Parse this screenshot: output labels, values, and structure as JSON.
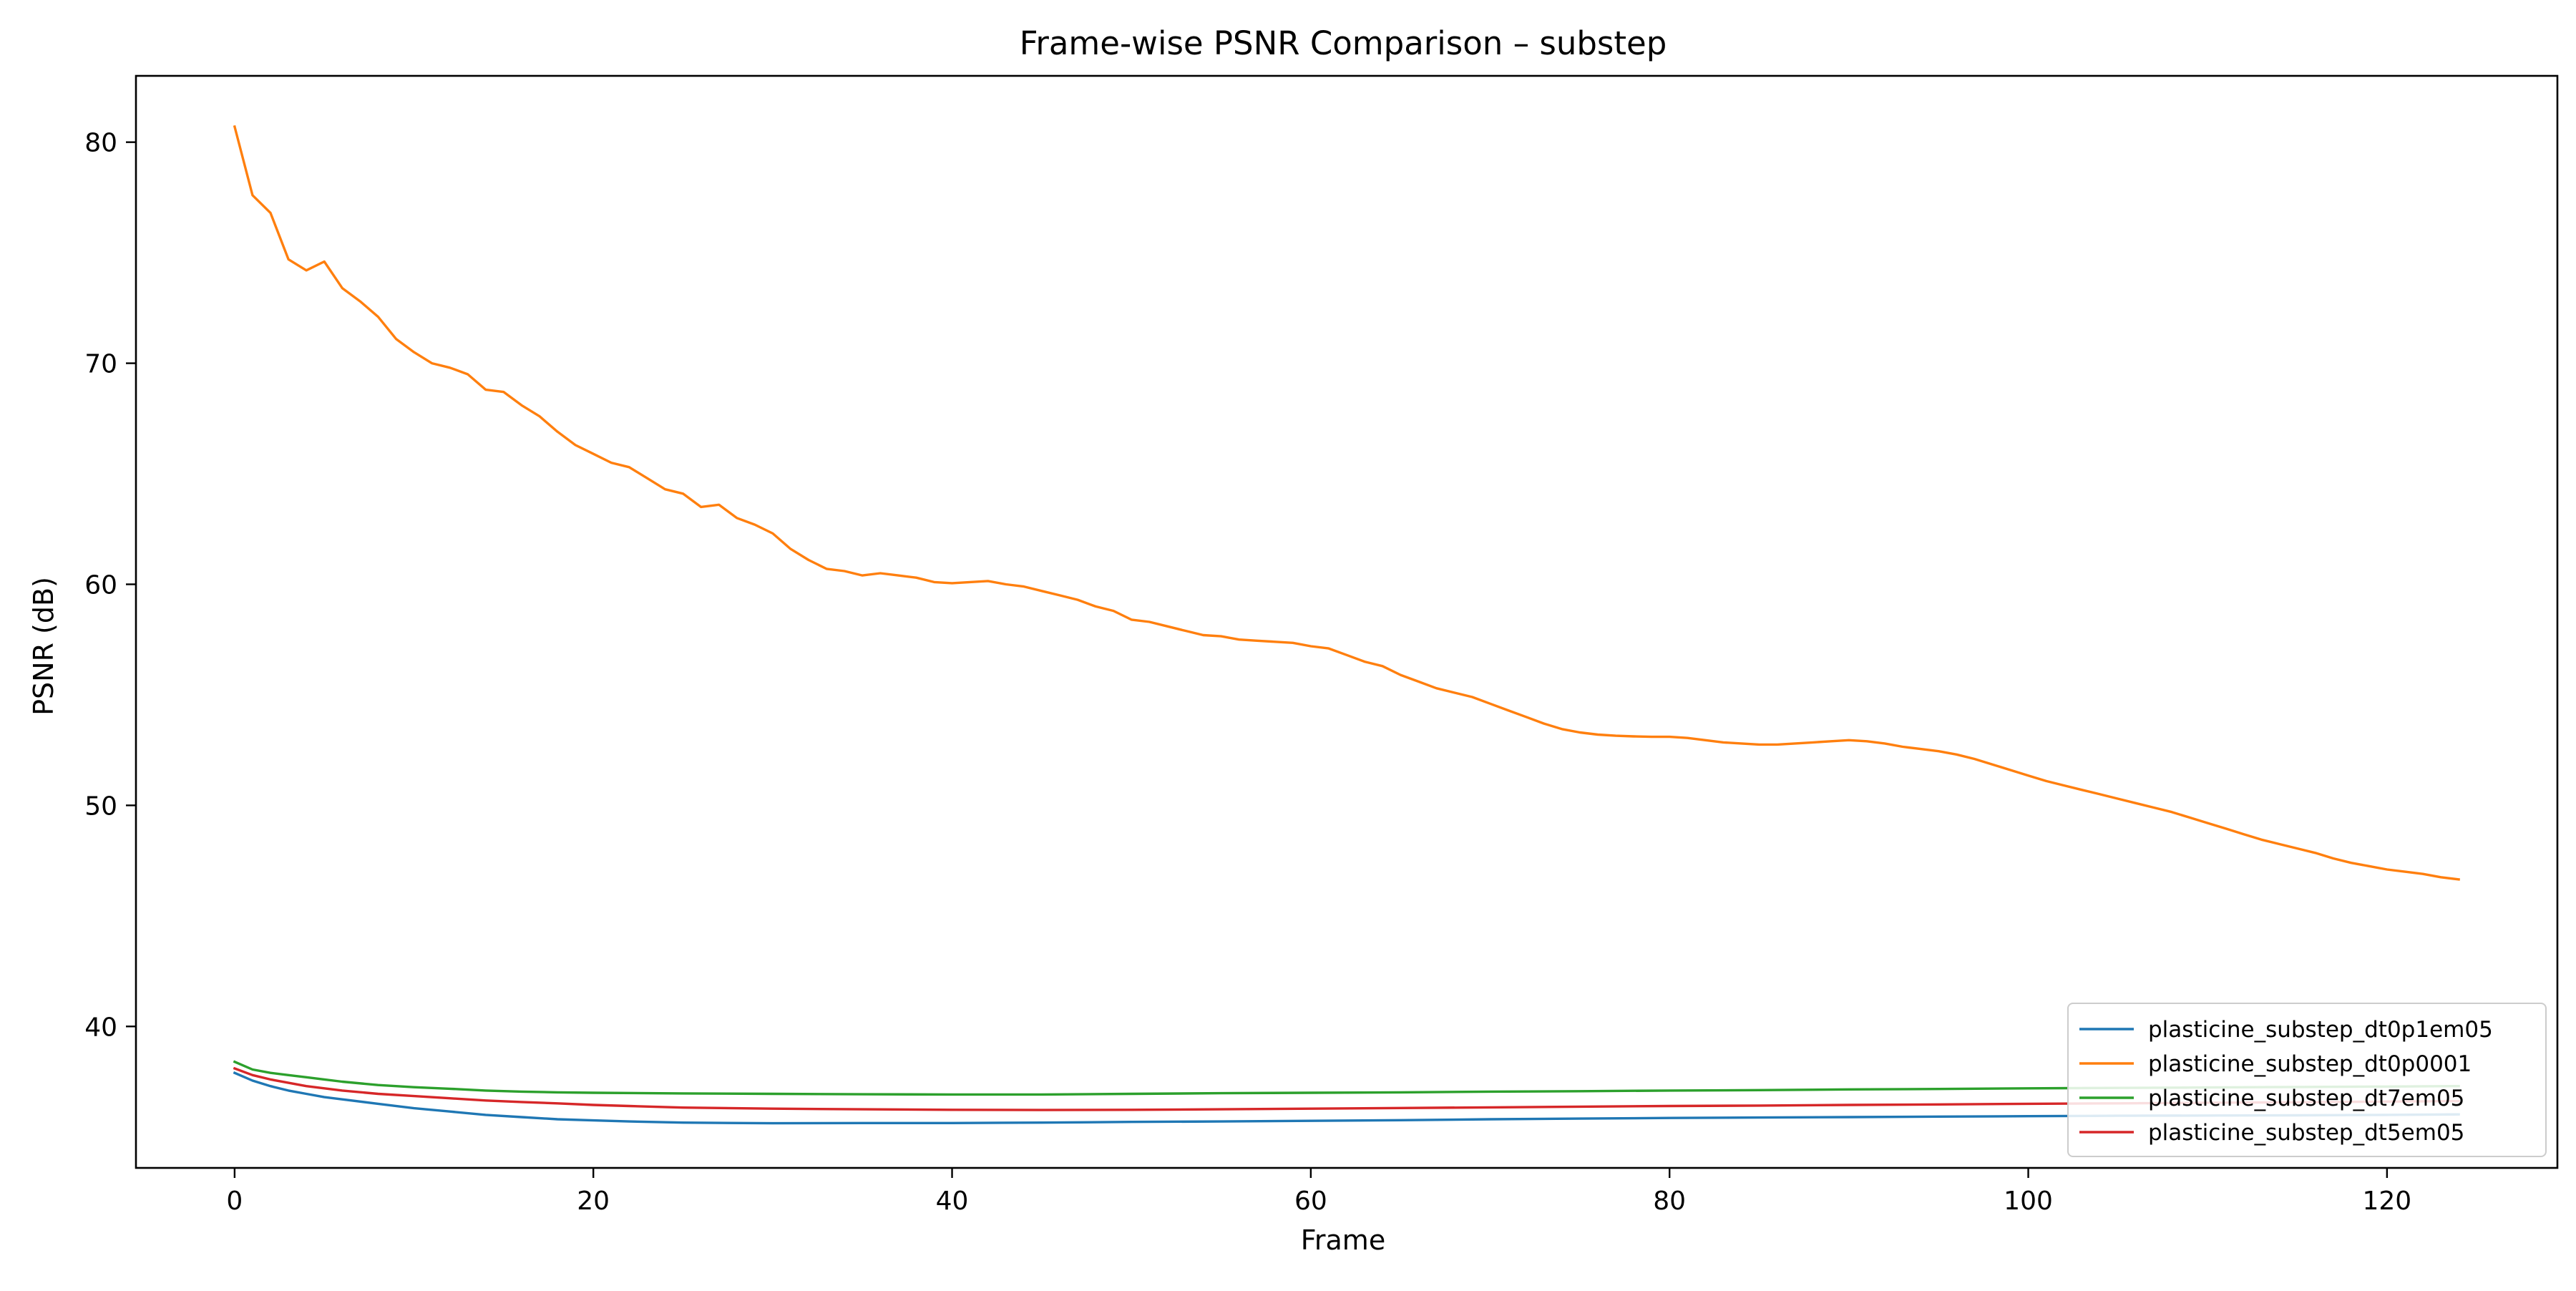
{
  "chart_data": {
    "type": "line",
    "title": "Frame-wise PSNR Comparison – substep",
    "xlabel": "Frame",
    "ylabel": "PSNR (dB)",
    "xlim": [
      -5.5,
      129.5
    ],
    "ylim": [
      33.6,
      83.0
    ],
    "xticks": [
      0,
      20,
      40,
      60,
      80,
      100,
      120
    ],
    "yticks": [
      40,
      50,
      60,
      70,
      80
    ],
    "grid": false,
    "legend_position": "lower right",
    "series": [
      {
        "name": "plasticine_substep_dt0p1em05",
        "color": "#1f77b4",
        "points": [
          [
            0,
            37.9
          ],
          [
            1,
            37.55
          ],
          [
            2,
            37.3
          ],
          [
            3,
            37.1
          ],
          [
            4,
            36.95
          ],
          [
            5,
            36.8
          ],
          [
            6,
            36.7
          ],
          [
            8,
            36.5
          ],
          [
            10,
            36.3
          ],
          [
            12,
            36.15
          ],
          [
            14,
            36.0
          ],
          [
            16,
            35.9
          ],
          [
            18,
            35.8
          ],
          [
            20,
            35.75
          ],
          [
            22,
            35.7
          ],
          [
            25,
            35.65
          ],
          [
            30,
            35.62
          ],
          [
            35,
            35.63
          ],
          [
            40,
            35.63
          ],
          [
            45,
            35.65
          ],
          [
            50,
            35.68
          ],
          [
            55,
            35.7
          ],
          [
            60,
            35.73
          ],
          [
            65,
            35.76
          ],
          [
            70,
            35.8
          ],
          [
            75,
            35.83
          ],
          [
            80,
            35.86
          ],
          [
            85,
            35.88
          ],
          [
            90,
            35.9
          ],
          [
            95,
            35.92
          ],
          [
            100,
            35.94
          ],
          [
            105,
            35.96
          ],
          [
            110,
            35.97
          ],
          [
            115,
            35.98
          ],
          [
            120,
            36.0
          ],
          [
            124,
            36.02
          ]
        ]
      },
      {
        "name": "plasticine_substep_dt0p0001",
        "color": "#ff7f0e",
        "points": [
          [
            0,
            80.7
          ],
          [
            1,
            77.6
          ],
          [
            2,
            76.8
          ],
          [
            3,
            74.7
          ],
          [
            4,
            74.2
          ],
          [
            5,
            74.6
          ],
          [
            6,
            73.4
          ],
          [
            7,
            72.8
          ],
          [
            8,
            72.1
          ],
          [
            9,
            71.1
          ],
          [
            10,
            70.5
          ],
          [
            11,
            70.0
          ],
          [
            12,
            69.8
          ],
          [
            13,
            69.5
          ],
          [
            14,
            68.8
          ],
          [
            15,
            68.7
          ],
          [
            16,
            68.1
          ],
          [
            17,
            67.6
          ],
          [
            18,
            66.9
          ],
          [
            19,
            66.3
          ],
          [
            20,
            65.9
          ],
          [
            21,
            65.5
          ],
          [
            22,
            65.3
          ],
          [
            23,
            64.8
          ],
          [
            24,
            64.3
          ],
          [
            25,
            64.1
          ],
          [
            26,
            63.5
          ],
          [
            27,
            63.6
          ],
          [
            28,
            63.0
          ],
          [
            29,
            62.7
          ],
          [
            30,
            62.3
          ],
          [
            31,
            61.6
          ],
          [
            32,
            61.1
          ],
          [
            33,
            60.7
          ],
          [
            34,
            60.6
          ],
          [
            35,
            60.4
          ],
          [
            36,
            60.5
          ],
          [
            37,
            60.4
          ],
          [
            38,
            60.3
          ],
          [
            39,
            60.1
          ],
          [
            40,
            60.05
          ],
          [
            41,
            60.1
          ],
          [
            42,
            60.15
          ],
          [
            43,
            60.0
          ],
          [
            44,
            59.9
          ],
          [
            45,
            59.7
          ],
          [
            46,
            59.5
          ],
          [
            47,
            59.3
          ],
          [
            48,
            59.0
          ],
          [
            49,
            58.8
          ],
          [
            50,
            58.4
          ],
          [
            51,
            58.3
          ],
          [
            52,
            58.1
          ],
          [
            53,
            57.9
          ],
          [
            54,
            57.7
          ],
          [
            55,
            57.65
          ],
          [
            56,
            57.5
          ],
          [
            57,
            57.45
          ],
          [
            58,
            57.4
          ],
          [
            59,
            57.35
          ],
          [
            60,
            57.2
          ],
          [
            61,
            57.1
          ],
          [
            62,
            56.8
          ],
          [
            63,
            56.5
          ],
          [
            64,
            56.3
          ],
          [
            65,
            55.9
          ],
          [
            66,
            55.6
          ],
          [
            67,
            55.3
          ],
          [
            68,
            55.1
          ],
          [
            69,
            54.9
          ],
          [
            70,
            54.6
          ],
          [
            71,
            54.3
          ],
          [
            72,
            54.0
          ],
          [
            73,
            53.7
          ],
          [
            74,
            53.45
          ],
          [
            75,
            53.3
          ],
          [
            76,
            53.2
          ],
          [
            77,
            53.15
          ],
          [
            78,
            53.12
          ],
          [
            79,
            53.1
          ],
          [
            80,
            53.1
          ],
          [
            81,
            53.05
          ],
          [
            82,
            52.95
          ],
          [
            83,
            52.85
          ],
          [
            84,
            52.8
          ],
          [
            85,
            52.75
          ],
          [
            86,
            52.75
          ],
          [
            87,
            52.8
          ],
          [
            88,
            52.85
          ],
          [
            89,
            52.9
          ],
          [
            90,
            52.95
          ],
          [
            91,
            52.9
          ],
          [
            92,
            52.8
          ],
          [
            93,
            52.65
          ],
          [
            94,
            52.55
          ],
          [
            95,
            52.45
          ],
          [
            96,
            52.3
          ],
          [
            97,
            52.1
          ],
          [
            98,
            51.85
          ],
          [
            99,
            51.6
          ],
          [
            100,
            51.35
          ],
          [
            101,
            51.1
          ],
          [
            102,
            50.9
          ],
          [
            103,
            50.7
          ],
          [
            104,
            50.5
          ],
          [
            105,
            50.3
          ],
          [
            106,
            50.1
          ],
          [
            107,
            49.9
          ],
          [
            108,
            49.7
          ],
          [
            109,
            49.45
          ],
          [
            110,
            49.2
          ],
          [
            111,
            48.95
          ],
          [
            112,
            48.7
          ],
          [
            113,
            48.45
          ],
          [
            114,
            48.25
          ],
          [
            115,
            48.05
          ],
          [
            116,
            47.85
          ],
          [
            117,
            47.6
          ],
          [
            118,
            47.4
          ],
          [
            119,
            47.25
          ],
          [
            120,
            47.1
          ],
          [
            121,
            47.0
          ],
          [
            122,
            46.9
          ],
          [
            123,
            46.75
          ],
          [
            124,
            46.65
          ]
        ]
      },
      {
        "name": "plasticine_substep_dt7em05",
        "color": "#2ca02c",
        "points": [
          [
            0,
            38.4
          ],
          [
            1,
            38.05
          ],
          [
            2,
            37.9
          ],
          [
            3,
            37.8
          ],
          [
            4,
            37.7
          ],
          [
            5,
            37.6
          ],
          [
            6,
            37.5
          ],
          [
            8,
            37.35
          ],
          [
            10,
            37.25
          ],
          [
            12,
            37.18
          ],
          [
            14,
            37.1
          ],
          [
            16,
            37.05
          ],
          [
            18,
            37.02
          ],
          [
            20,
            37.0
          ],
          [
            25,
            36.97
          ],
          [
            30,
            36.95
          ],
          [
            35,
            36.93
          ],
          [
            40,
            36.92
          ],
          [
            45,
            36.92
          ],
          [
            50,
            36.95
          ],
          [
            55,
            36.98
          ],
          [
            60,
            37.0
          ],
          [
            65,
            37.02
          ],
          [
            70,
            37.05
          ],
          [
            75,
            37.07
          ],
          [
            80,
            37.1
          ],
          [
            85,
            37.12
          ],
          [
            90,
            37.15
          ],
          [
            95,
            37.17
          ],
          [
            100,
            37.2
          ],
          [
            105,
            37.22
          ],
          [
            110,
            37.24
          ],
          [
            115,
            37.26
          ],
          [
            120,
            37.28
          ],
          [
            124,
            37.3
          ]
        ]
      },
      {
        "name": "plasticine_substep_dt5em05",
        "color": "#d62728",
        "points": [
          [
            0,
            38.1
          ],
          [
            1,
            37.8
          ],
          [
            2,
            37.6
          ],
          [
            3,
            37.45
          ],
          [
            4,
            37.3
          ],
          [
            5,
            37.2
          ],
          [
            6,
            37.1
          ],
          [
            8,
            36.95
          ],
          [
            10,
            36.85
          ],
          [
            12,
            36.75
          ],
          [
            14,
            36.65
          ],
          [
            16,
            36.58
          ],
          [
            18,
            36.52
          ],
          [
            20,
            36.45
          ],
          [
            22,
            36.4
          ],
          [
            25,
            36.33
          ],
          [
            30,
            36.28
          ],
          [
            35,
            36.25
          ],
          [
            40,
            36.23
          ],
          [
            45,
            36.22
          ],
          [
            50,
            36.23
          ],
          [
            55,
            36.25
          ],
          [
            60,
            36.28
          ],
          [
            65,
            36.31
          ],
          [
            70,
            36.34
          ],
          [
            75,
            36.37
          ],
          [
            80,
            36.4
          ],
          [
            85,
            36.42
          ],
          [
            90,
            36.45
          ],
          [
            95,
            36.47
          ],
          [
            100,
            36.5
          ],
          [
            105,
            36.52
          ],
          [
            110,
            36.55
          ],
          [
            115,
            36.57
          ],
          [
            120,
            36.6
          ],
          [
            124,
            36.62
          ]
        ]
      }
    ]
  }
}
